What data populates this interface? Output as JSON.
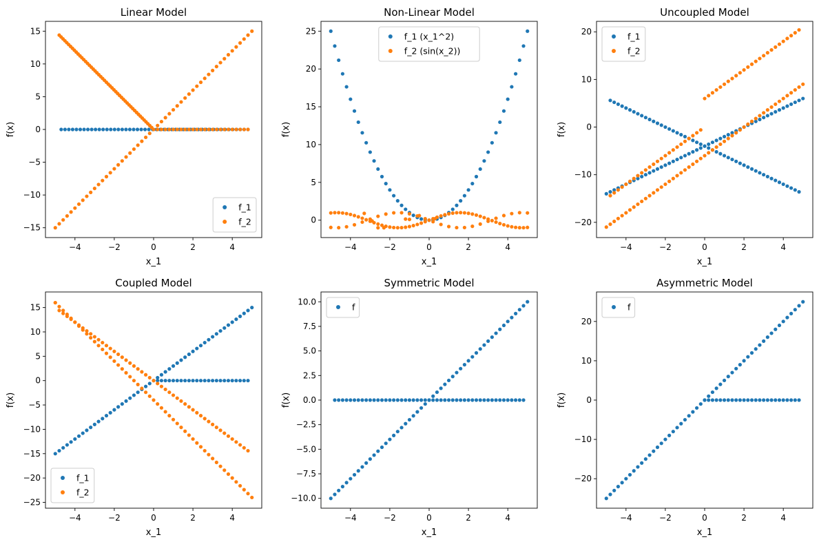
{
  "chart_data": [
    {
      "type": "scatter",
      "title": "Linear Model",
      "xlabel": "x_1",
      "ylabel": "f(x)",
      "xlim": [
        -5.5,
        5.5
      ],
      "ylim": [
        -16.5,
        16.5
      ],
      "xticks": [
        -4,
        -2,
        0,
        2,
        4
      ],
      "xtick_labels": [
        "−4",
        "−2",
        "0",
        "2",
        "4"
      ],
      "yticks": [
        -15,
        -10,
        -5,
        0,
        5,
        10,
        15
      ],
      "ytick_labels": [
        "−15",
        "−10",
        "−5",
        "0",
        "5",
        "10",
        "15"
      ],
      "legend": "lower-right",
      "series": [
        {
          "name": "f_1",
          "color": "#1f77b4",
          "segments": [
            {
              "x0": -4.7,
              "x1": 4.8,
              "n": 50,
              "slope": 0,
              "intercept": 0
            }
          ]
        },
        {
          "name": "f_2",
          "color": "#ff7f0e",
          "segments": [
            {
              "x0": -4.8,
              "x1": -0.1,
              "n": 50,
              "slope": -3,
              "intercept": 0
            },
            {
              "x0": -5.0,
              "x1": 5.0,
              "n": 51,
              "slope": 3,
              "intercept": 0
            },
            {
              "x0": 0.0,
              "x1": 4.8,
              "n": 25,
              "slope": 0,
              "intercept": 0
            }
          ]
        }
      ]
    },
    {
      "type": "scatter",
      "title": "Non-Linear Model",
      "xlabel": "x_1",
      "ylabel": "f(x)",
      "xlim": [
        -5.5,
        5.5
      ],
      "ylim": [
        -2.3,
        26.3
      ],
      "xticks": [
        -4,
        -2,
        0,
        2,
        4
      ],
      "xtick_labels": [
        "−4",
        "−2",
        "0",
        "2",
        "4"
      ],
      "yticks": [
        0,
        5,
        10,
        15,
        20,
        25
      ],
      "ytick_labels": [
        "0",
        "5",
        "10",
        "15",
        "20",
        "25"
      ],
      "legend": "top-center",
      "series": [
        {
          "name": "f_1 (x_1^2)",
          "color": "#1f77b4",
          "segments": [
            {
              "x0": -5.0,
              "x1": 5.0,
              "n": 51,
              "fn": "square"
            }
          ]
        },
        {
          "name": "f_2 (sin(x_2))",
          "color": "#ff7f0e",
          "segments": [
            {
              "x0": -5.0,
              "x1": 5.0,
              "n": 51,
              "fn": "sin"
            },
            {
              "x0": -5.0,
              "x1": 5.0,
              "n": 26,
              "fn": "negsin"
            }
          ],
          "points": [
            [
              -3.3,
              0.9
            ],
            [
              -2.9,
              -0.1
            ],
            [
              -2.6,
              -1.0
            ],
            [
              -2.3,
              -1.0
            ],
            [
              -1.2,
              0.15
            ],
            [
              -1.0,
              0.1
            ],
            [
              -0.5,
              0.6
            ],
            [
              0.3,
              0.2
            ]
          ]
        }
      ]
    },
    {
      "type": "scatter",
      "title": "Uncoupled Model",
      "xlabel": "x_1",
      "ylabel": "f(x)",
      "xlim": [
        -5.5,
        5.5
      ],
      "ylim": [
        -23.2,
        22.2
      ],
      "xticks": [
        -4,
        -2,
        0,
        2,
        4
      ],
      "xtick_labels": [
        "−4",
        "−2",
        "0",
        "2",
        "4"
      ],
      "yticks": [
        -20,
        -10,
        0,
        10,
        20
      ],
      "ytick_labels": [
        "−20",
        "−10",
        "0",
        "10",
        "20"
      ],
      "legend": "top-left",
      "series": [
        {
          "name": "f_1",
          "color": "#1f77b4",
          "segments": [
            {
              "x0": -5.0,
              "x1": 5.0,
              "n": 51,
              "slope": 2,
              "intercept": -4
            },
            {
              "x0": -4.8,
              "x1": 4.8,
              "n": 49,
              "slope": -2,
              "intercept": -4
            }
          ]
        },
        {
          "name": "f_2",
          "color": "#ff7f0e",
          "segments": [
            {
              "x0": -4.8,
              "x1": -0.2,
              "n": 24,
              "slope": 3,
              "intercept": 0
            },
            {
              "x0": 0.0,
              "x1": 4.8,
              "n": 25,
              "slope": 3,
              "intercept": 6
            },
            {
              "x0": -5.0,
              "x1": 5.0,
              "n": 51,
              "slope": 3,
              "intercept": -6
            }
          ]
        }
      ]
    },
    {
      "type": "scatter",
      "title": "Coupled Model",
      "xlabel": "x_1",
      "ylabel": "f(x)",
      "xlim": [
        -5.5,
        5.5
      ],
      "ylim": [
        -26.2,
        18.2
      ],
      "xticks": [
        -4,
        -2,
        0,
        2,
        4
      ],
      "xtick_labels": [
        "−4",
        "−2",
        "0",
        "2",
        "4"
      ],
      "yticks": [
        -25,
        -20,
        -15,
        -10,
        -5,
        0,
        5,
        10,
        15
      ],
      "ytick_labels": [
        "−25",
        "−20",
        "−15",
        "−10",
        "−5",
        "0",
        "5",
        "10",
        "15"
      ],
      "legend": "lower-left",
      "series": [
        {
          "name": "f_1",
          "color": "#1f77b4",
          "segments": [
            {
              "x0": -5.0,
              "x1": 5.0,
              "n": 51,
              "slope": 3,
              "intercept": 0
            },
            {
              "x0": 0.2,
              "x1": 4.8,
              "n": 24,
              "slope": 0,
              "intercept": 0
            }
          ]
        },
        {
          "name": "f_2",
          "color": "#ff7f0e",
          "segments": [
            {
              "x0": -4.8,
              "x1": 4.8,
              "n": 49,
              "slope": -3,
              "intercept": 0
            },
            {
              "x0": -5.0,
              "x1": 5.0,
              "n": 51,
              "slope": -4,
              "intercept": -4
            }
          ],
          "points": [
            [
              -5.0,
              16.0
            ]
          ]
        }
      ]
    },
    {
      "type": "scatter",
      "title": "Symmetric Model",
      "xlabel": "x_1",
      "ylabel": "f(x)",
      "xlim": [
        -5.5,
        5.5
      ],
      "ylim": [
        -11.0,
        11.0
      ],
      "xticks": [
        -4,
        -2,
        0,
        2,
        4
      ],
      "xtick_labels": [
        "−4",
        "−2",
        "0",
        "2",
        "4"
      ],
      "yticks": [
        -10,
        -7.5,
        -5,
        -2.5,
        0,
        2.5,
        5,
        7.5,
        10
      ],
      "ytick_labels": [
        "−10.0",
        "−7.5",
        "−5.0",
        "−2.5",
        "0.0",
        "2.5",
        "5.0",
        "7.5",
        "10.0"
      ],
      "legend": "top-left",
      "series": [
        {
          "name": "f",
          "color": "#1f77b4",
          "segments": [
            {
              "x0": -5.0,
              "x1": 5.0,
              "n": 51,
              "slope": 2,
              "intercept": 0
            },
            {
              "x0": -4.8,
              "x1": 4.8,
              "n": 49,
              "slope": 0,
              "intercept": 0
            }
          ]
        }
      ]
    },
    {
      "type": "scatter",
      "title": "Asymmetric Model",
      "xlabel": "x_1",
      "ylabel": "f(x)",
      "xlim": [
        -5.5,
        5.5
      ],
      "ylim": [
        -27.5,
        27.5
      ],
      "xticks": [
        -4,
        -2,
        0,
        2,
        4
      ],
      "xtick_labels": [
        "−4",
        "−2",
        "0",
        "2",
        "4"
      ],
      "yticks": [
        -20,
        -10,
        0,
        10,
        20
      ],
      "ytick_labels": [
        "−20",
        "−10",
        "0",
        "10",
        "20"
      ],
      "legend": "top-left",
      "series": [
        {
          "name": "f",
          "color": "#1f77b4",
          "segments": [
            {
              "x0": -5.0,
              "x1": 5.0,
              "n": 51,
              "slope": 5,
              "intercept": 0
            },
            {
              "x0": 0.0,
              "x1": 4.8,
              "n": 25,
              "slope": 0,
              "intercept": 0
            }
          ]
        }
      ]
    }
  ]
}
